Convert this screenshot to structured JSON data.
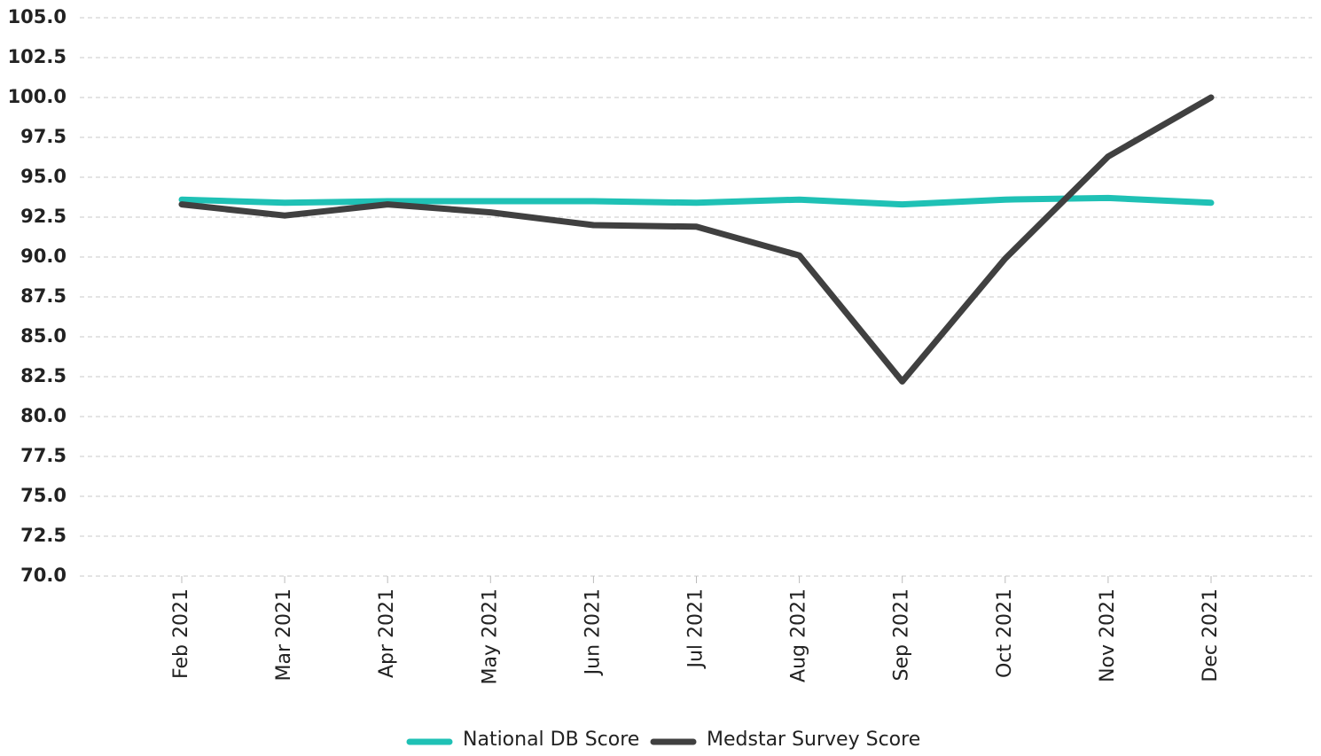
{
  "chart_data": {
    "type": "line",
    "categories": [
      "Feb 2021",
      "Mar 2021",
      "Apr 2021",
      "May 2021",
      "Jun 2021",
      "Jul 2021",
      "Aug 2021",
      "Sep 2021",
      "Oct 2021",
      "Nov 2021",
      "Dec 2021"
    ],
    "series": [
      {
        "name": "National DB Score",
        "color": "#1fc1b5",
        "values": [
          93.6,
          93.4,
          93.5,
          93.5,
          93.5,
          93.4,
          93.6,
          93.3,
          93.6,
          93.7,
          93.4
        ]
      },
      {
        "name": "Medstar Survey Score",
        "color": "#404040",
        "values": [
          93.3,
          92.6,
          93.3,
          92.8,
          92.0,
          91.9,
          90.1,
          82.2,
          89.9,
          96.3,
          100.0
        ]
      }
    ],
    "ylim": [
      70,
      105
    ],
    "yticks": [
      {
        "value": 70,
        "label": "70.0"
      },
      {
        "value": 72.5,
        "label": "72.5"
      },
      {
        "value": 75,
        "label": "75.0"
      },
      {
        "value": 77.5,
        "label": "77.5"
      },
      {
        "value": 80,
        "label": "80.0"
      },
      {
        "value": 82.5,
        "label": "82.5"
      },
      {
        "value": 85,
        "label": "85.0"
      },
      {
        "value": 87.5,
        "label": "87.5"
      },
      {
        "value": 90,
        "label": "90.0"
      },
      {
        "value": 92.5,
        "label": "92.5"
      },
      {
        "value": 95,
        "label": "95.0"
      },
      {
        "value": 97.5,
        "label": "97.5"
      },
      {
        "value": 100,
        "label": "100.0"
      },
      {
        "value": 102.5,
        "label": "102.5"
      },
      {
        "value": 105,
        "label": "105.0"
      }
    ],
    "grid": true,
    "legend": "bottom"
  }
}
